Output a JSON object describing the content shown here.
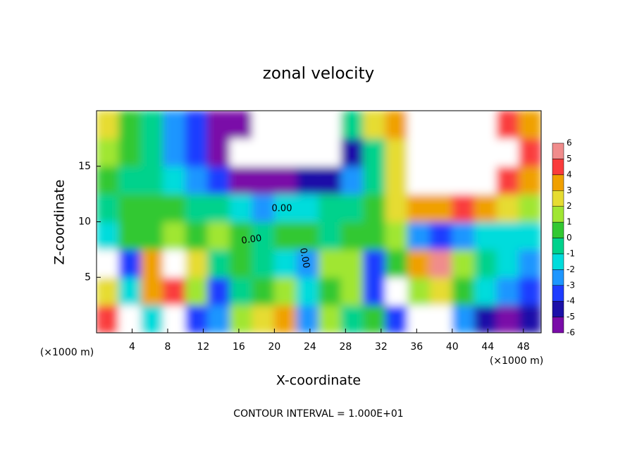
{
  "chart_data": {
    "type": "heatmap",
    "title": "zonal velocity",
    "x_label": "X-coordinate",
    "y_label": "Z-coordinate",
    "x_unit_label": "(×1000 m)",
    "y_unit_label": "(×1000 m)",
    "footer": "CONTOUR INTERVAL = 1.000E+01",
    "annotations": [
      "0.00",
      "0.00",
      "0.00"
    ],
    "xlim": [
      0,
      50
    ],
    "ylim": [
      0,
      20
    ],
    "xticks": [
      4,
      8,
      12,
      16,
      20,
      24,
      28,
      32,
      36,
      40,
      44,
      48
    ],
    "yticks": [
      5,
      10,
      15
    ],
    "x_edges": [
      0,
      2.5,
      5,
      7.5,
      10,
      12.5,
      15,
      17.5,
      20,
      22.5,
      25,
      27.5,
      30,
      32.5,
      35,
      37.5,
      40,
      42.5,
      45,
      47.5,
      50
    ],
    "z_edges": [
      0,
      2.5,
      5,
      7.5,
      10,
      12.5,
      15,
      17.5,
      20
    ],
    "values": [
      [
        5,
        8,
        -1,
        8,
        -3,
        -2,
        2,
        3,
        4,
        -2,
        2,
        0,
        1,
        -3,
        8,
        8,
        -2,
        -4,
        -5,
        -4
      ],
      [
        3,
        -1,
        4,
        5,
        2,
        -3,
        0,
        1,
        2,
        -1,
        1,
        2,
        -3,
        -8,
        2,
        3,
        1,
        -1,
        -2,
        -3
      ],
      [
        -8,
        -3,
        4,
        8,
        3,
        0,
        1,
        0,
        -1,
        -2,
        2,
        2,
        -3,
        1,
        4,
        6,
        2,
        0,
        -1,
        -2
      ],
      [
        -1,
        1,
        1,
        2,
        1,
        2,
        1,
        0,
        1,
        1,
        0,
        1,
        1,
        2,
        -2,
        -3,
        -2,
        -1,
        -1,
        -1
      ],
      [
        0,
        1,
        1,
        1,
        0,
        0,
        -1,
        -2,
        -1,
        -1,
        0,
        0,
        1,
        3,
        4,
        4,
        5,
        4,
        3,
        2
      ],
      [
        1,
        0,
        0,
        -1,
        -2,
        -3,
        -5,
        -6,
        -5,
        -4,
        -4,
        -2,
        0,
        3,
        8,
        8,
        8,
        8,
        5,
        4
      ],
      [
        2,
        1,
        0,
        -2,
        -3,
        -5,
        -8,
        -8,
        -8,
        -8,
        -8,
        -4,
        0,
        3,
        8,
        8,
        8,
        8,
        7,
        5
      ],
      [
        3,
        1,
        0,
        -2,
        -3,
        -5,
        -5,
        -8,
        -8,
        -8,
        -8,
        0,
        3,
        4,
        8,
        8,
        8,
        8,
        5,
        4
      ]
    ],
    "colorbar": {
      "ticks": [
        -6,
        -5,
        -4,
        -3,
        -2,
        -1,
        0,
        1,
        2,
        3,
        4,
        5,
        6
      ],
      "colors": [
        "#7a0ca8",
        "#1c10a8",
        "#1e3cff",
        "#1e96ff",
        "#00dcdc",
        "#00d28c",
        "#32c832",
        "#a0e632",
        "#e6dc32",
        "#f0a000",
        "#fa3c3c",
        "#f08c8c"
      ]
    },
    "out_of_range_color": "#ffffff"
  }
}
